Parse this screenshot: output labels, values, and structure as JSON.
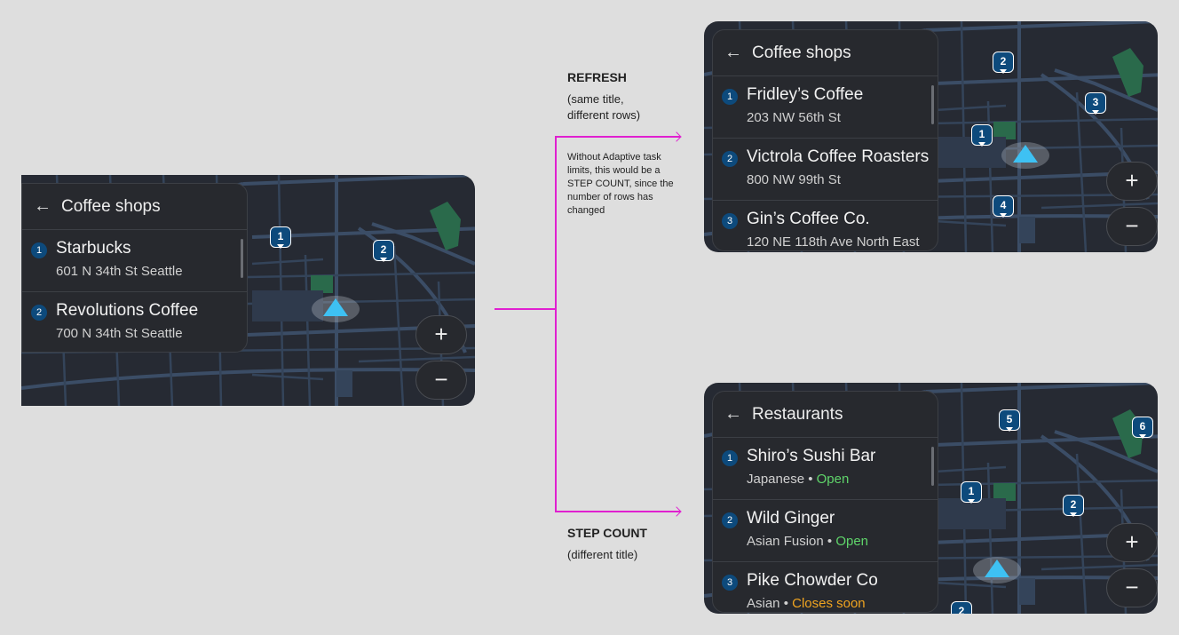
{
  "annotations": {
    "refresh_title": "REFRESH",
    "refresh_sub": "(same title, different rows)",
    "refresh_note": "Without Adaptive task limits, this would be a STEP COUNT, since the number of rows has changed",
    "step_title": "STEP COUNT",
    "step_sub": "(different title)",
    "arrow_color": "#e020d0"
  },
  "screens": [
    {
      "title": "Coffee shops",
      "rows": [
        {
          "num": "1",
          "title": "Starbucks",
          "sub": "601 N 34th St Seattle"
        },
        {
          "num": "2",
          "title": "Revolutions Coffee",
          "sub": "700 N 34th St Seattle"
        }
      ],
      "markers": [
        "1",
        "2"
      ],
      "zoom_in": "+",
      "zoom_out": "−"
    },
    {
      "title": "Coffee shops",
      "rows": [
        {
          "num": "1",
          "title": "Fridley’s Coffee",
          "sub": "203 NW 56th St"
        },
        {
          "num": "2",
          "title": "Victrola Coffee Roasters",
          "sub": "800 NW 99th St"
        },
        {
          "num": "3",
          "title": "Gin’s Coffee Co.",
          "sub": "120 NE 118th Ave North East"
        }
      ],
      "markers": [
        "2",
        "3",
        "1",
        "4"
      ],
      "zoom_in": "+",
      "zoom_out": "−"
    },
    {
      "title": "Restaurants",
      "rows": [
        {
          "num": "1",
          "title": "Shiro’s Sushi Bar",
          "sub": "Japanese • ",
          "status": "Open"
        },
        {
          "num": "2",
          "title": "Wild Ginger",
          "sub": "Asian Fusion • ",
          "status": "Open"
        },
        {
          "num": "3",
          "title": "Pike Chowder Co",
          "sub": "Asian • ",
          "status": "Closes soon"
        }
      ],
      "markers": [
        "5",
        "6",
        "1",
        "2",
        "2"
      ],
      "zoom_in": "+",
      "zoom_out": "−"
    }
  ],
  "colors": {
    "open": "#5fd46a",
    "closes_soon": "#f0a420",
    "marker": "#0d4a7c",
    "location": "#3ec1f3"
  }
}
